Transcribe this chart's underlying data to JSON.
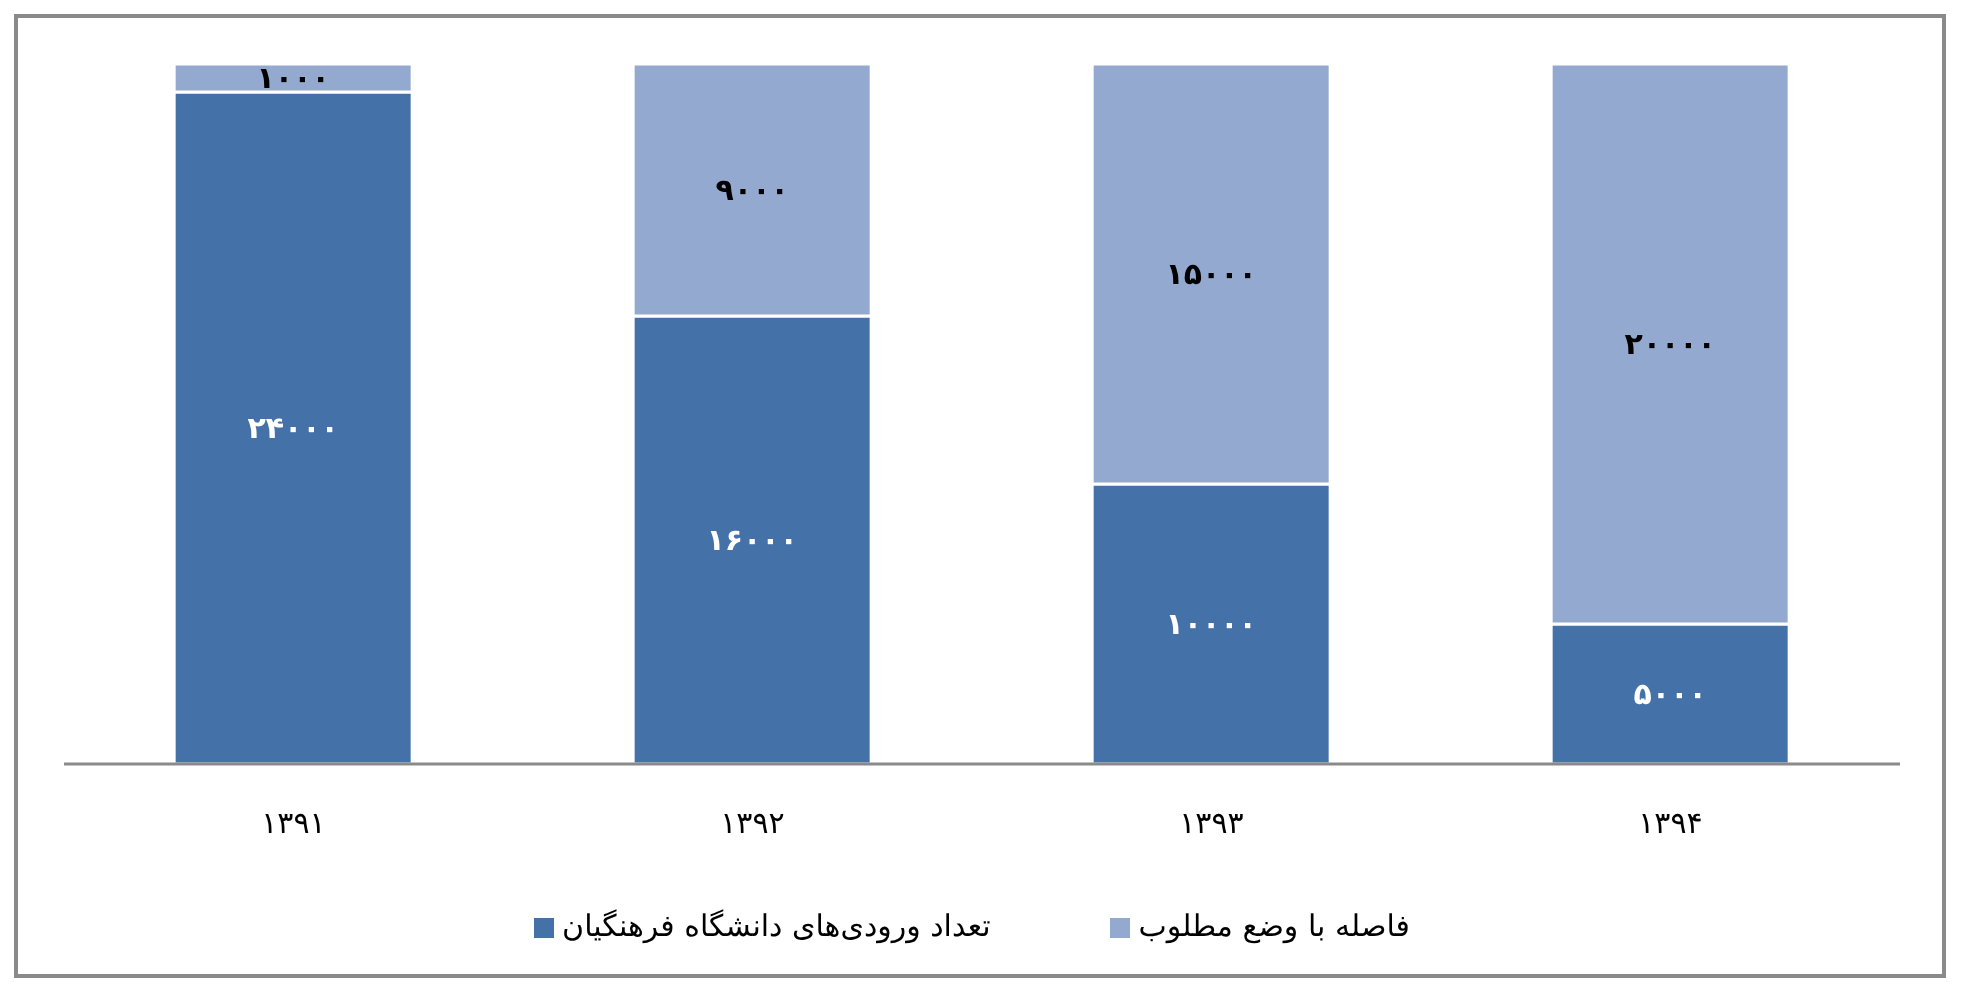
{
  "chart_data": {
    "type": "bar",
    "stacked": true,
    "categories": [
      "۱۳۹۱",
      "۱۳۹۲",
      "۱۳۹۳",
      "۱۳۹۴"
    ],
    "series": [
      {
        "name": "تعداد ورودی‌های دانشگاه فرهنگیان",
        "color": "#4571a9",
        "values": [
          24000,
          16000,
          10000,
          5000
        ],
        "value_labels": [
          "۲۴۰۰۰",
          "۱۶۰۰۰",
          "۱۰۰۰۰",
          "۵۰۰۰"
        ]
      },
      {
        "name": "فاصله با وضع مطلوب",
        "color": "#94a9cf",
        "values": [
          1000,
          9000,
          15000,
          20000
        ],
        "value_labels": [
          "۱۰۰۰",
          "۹۰۰۰",
          "۱۵۰۰۰",
          "۲۰۰۰۰"
        ]
      }
    ],
    "legend": "bottom",
    "tick_labels": "x"
  }
}
